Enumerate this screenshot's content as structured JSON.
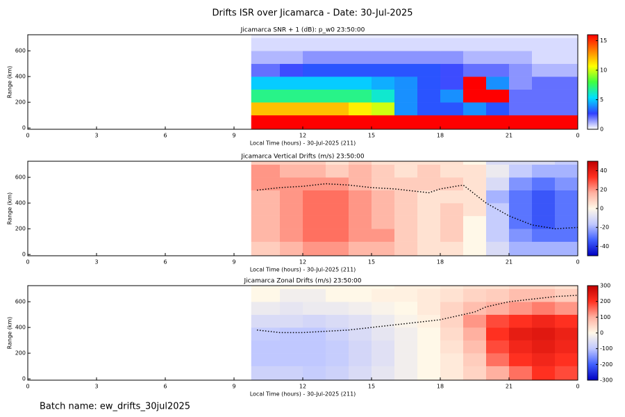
{
  "title": "Drifts ISR over Jicamarca - Date: 30-Jul-2025",
  "footnote": "Batch name: ew_drifts_30jul2025",
  "chart_data": [
    {
      "type": "heatmap",
      "title": "Jicamarca SNR + 1 (dB): p_w0 23:50:00",
      "xlabel": "Local Time (hours) - 30-Jul-2025 (211)",
      "ylabel": "Range (km)",
      "xlim": [
        0,
        24
      ],
      "xticks": [
        0,
        3,
        6,
        9,
        12,
        15,
        18,
        21,
        {
          "value": 24,
          "label": "0"
        }
      ],
      "ylim": [
        -10,
        725
      ],
      "yticks": [
        0,
        200,
        400,
        600
      ],
      "zlim": [
        0,
        16
      ],
      "zticks": [
        0,
        5,
        10,
        15
      ],
      "colorscale": [
        "#ffffff",
        "#3040ff",
        "#00e0ff",
        "#40ff40",
        "#ffff00",
        "#ff8000",
        "#ff0000"
      ],
      "xbins": [
        9.75,
        11,
        12,
        13,
        14,
        15,
        16,
        17,
        18,
        19,
        20,
        21,
        22,
        23,
        24
      ],
      "ybins": [
        -10,
        100,
        200,
        300,
        400,
        500,
        600,
        700,
        725
      ],
      "z": [
        [
          16,
          16,
          16,
          16,
          16,
          16,
          16,
          16,
          16,
          16,
          16,
          16,
          16,
          16
        ],
        [
          12,
          12,
          12,
          12,
          11,
          10,
          4,
          3,
          3,
          4,
          3,
          2,
          2,
          2
        ],
        [
          7,
          7,
          7,
          7,
          7,
          6,
          4,
          3,
          4,
          16,
          16,
          2,
          2,
          2
        ],
        [
          5,
          5,
          5,
          5,
          5,
          4.5,
          4,
          3,
          2.5,
          16,
          4,
          1.5,
          2,
          2
        ],
        [
          2,
          2.5,
          3,
          3,
          3,
          3,
          3,
          3,
          2.5,
          2,
          2,
          1.5,
          1,
          1
        ],
        [
          1,
          1,
          1.5,
          1.5,
          1.5,
          1.5,
          1.5,
          1.5,
          1.5,
          1,
          1,
          1,
          0.5,
          0.5
        ],
        [
          0.5,
          0.5,
          0.5,
          0.5,
          0.5,
          0.5,
          0.5,
          0.5,
          0.5,
          0.5,
          0.5,
          0.5,
          0.5,
          0.5
        ],
        [
          0.3,
          0.3,
          0.3,
          0.3,
          0.3,
          0.3,
          0.3,
          0.3,
          0.3,
          0.3,
          0.3,
          0.3,
          0.3,
          0.3
        ]
      ]
    },
    {
      "type": "heatmap",
      "title": "Jicamarca Vertical Drifts (m/s) 23:50:00",
      "xlabel": "Local Time (hours) - 30-Jul-2025 (211)",
      "ylabel": "Range (km)",
      "xlim": [
        0,
        24
      ],
      "xticks": [
        0,
        3,
        6,
        9,
        12,
        15,
        18,
        21,
        {
          "value": 24,
          "label": "0"
        }
      ],
      "ylim": [
        -10,
        725
      ],
      "yticks": [
        0,
        200,
        400,
        600
      ],
      "zlim": [
        -50,
        50
      ],
      "zticks": [
        -40,
        -20,
        0,
        20,
        40
      ],
      "colorscale": [
        "#0000c0",
        "#4060ff",
        "#c0c8ff",
        "#fff8e8",
        "#ffb0a0",
        "#ff3020",
        "#c00000"
      ],
      "xbins": [
        9.75,
        11,
        12,
        13,
        14,
        15,
        16,
        17,
        18,
        19,
        20,
        21,
        22,
        23,
        24
      ],
      "ybins": [
        -10,
        100,
        200,
        300,
        400,
        500,
        600,
        700,
        725
      ],
      "z": [
        [
          10,
          15,
          20,
          20,
          15,
          15,
          10,
          5,
          5,
          0,
          -10,
          -20,
          -20,
          -20
        ],
        [
          15,
          20,
          25,
          25,
          20,
          20,
          10,
          5,
          10,
          0,
          -15,
          -25,
          -30,
          -30
        ],
        [
          15,
          20,
          25,
          25,
          20,
          15,
          10,
          5,
          10,
          0,
          -15,
          -30,
          -35,
          -30
        ],
        [
          15,
          20,
          25,
          25,
          20,
          15,
          10,
          5,
          10,
          5,
          -15,
          -30,
          -35,
          -30
        ],
        [
          15,
          20,
          25,
          25,
          20,
          15,
          10,
          5,
          5,
          5,
          -20,
          -30,
          -35,
          -30
        ],
        [
          20,
          20,
          20,
          20,
          15,
          10,
          10,
          10,
          10,
          5,
          -10,
          -25,
          -30,
          -25
        ],
        [
          20,
          15,
          15,
          10,
          15,
          10,
          5,
          10,
          5,
          5,
          -5,
          -15,
          -20,
          -20
        ],
        [
          10,
          10,
          10,
          5,
          10,
          5,
          5,
          5,
          5,
          0,
          -10,
          -10,
          -10,
          -15
        ]
      ],
      "contour": {
        "x": [
          10,
          11,
          12,
          13,
          14,
          15,
          16,
          17,
          17.5,
          18,
          19,
          20,
          21,
          22,
          23,
          24
        ],
        "values": [
          500,
          520,
          530,
          550,
          540,
          520,
          510,
          490,
          480,
          510,
          540,
          400,
          300,
          230,
          200,
          210
        ]
      }
    },
    {
      "type": "heatmap",
      "title": "Jicamarca Zonal Drifts (m/s) 23:50:00",
      "xlabel": "Local Time (hours) - 30-Jul-2025 (211)",
      "ylabel": "Range (km)",
      "xlim": [
        0,
        24
      ],
      "xticks": [
        0,
        3,
        6,
        9,
        12,
        15,
        18,
        21,
        {
          "value": 24,
          "label": "0"
        }
      ],
      "ylim": [
        -10,
        725
      ],
      "yticks": [
        0,
        200,
        400,
        600
      ],
      "zlim": [
        -300,
        300
      ],
      "zticks": [
        -300,
        -200,
        -100,
        0,
        100,
        200,
        300
      ],
      "colorscale": [
        "#0000c0",
        "#4060ff",
        "#c0c8ff",
        "#fff8e8",
        "#ffb0a0",
        "#ff3020",
        "#c00000"
      ],
      "xbins": [
        9.75,
        11,
        12,
        13,
        14,
        15,
        16,
        17,
        18,
        19,
        20,
        21,
        22,
        23,
        24
      ],
      "ybins": [
        -10,
        100,
        200,
        300,
        400,
        500,
        600,
        700,
        725
      ],
      "z": [
        [
          -80,
          -80,
          -90,
          -80,
          -60,
          -40,
          -20,
          0,
          20,
          50,
          100,
          150,
          200,
          180
        ],
        [
          -100,
          -100,
          -100,
          -90,
          -70,
          -50,
          -20,
          0,
          20,
          60,
          150,
          200,
          220,
          200
        ],
        [
          -100,
          -100,
          -100,
          -90,
          -70,
          -50,
          -20,
          0,
          30,
          80,
          180,
          220,
          240,
          220
        ],
        [
          -90,
          -100,
          -100,
          -80,
          -60,
          -40,
          -20,
          0,
          40,
          100,
          200,
          240,
          250,
          230
        ],
        [
          -60,
          -60,
          -70,
          -60,
          -50,
          -30,
          -10,
          10,
          50,
          120,
          180,
          200,
          220,
          200
        ],
        [
          -30,
          -40,
          -30,
          -30,
          -20,
          -10,
          0,
          20,
          50,
          80,
          100,
          120,
          140,
          120
        ],
        [
          0,
          -20,
          -20,
          0,
          0,
          10,
          10,
          20,
          30,
          50,
          60,
          80,
          80,
          60
        ],
        [
          0,
          0,
          0,
          0,
          0,
          0,
          10,
          10,
          20,
          30,
          30,
          40,
          40,
          30
        ]
      ],
      "contour": {
        "x": [
          10,
          11,
          12,
          13,
          14,
          15,
          16,
          17,
          18,
          19,
          19.5,
          20,
          21,
          22,
          23,
          24
        ],
        "values": [
          380,
          360,
          360,
          370,
          380,
          400,
          420,
          440,
          460,
          500,
          520,
          560,
          600,
          620,
          640,
          650
        ]
      }
    }
  ]
}
